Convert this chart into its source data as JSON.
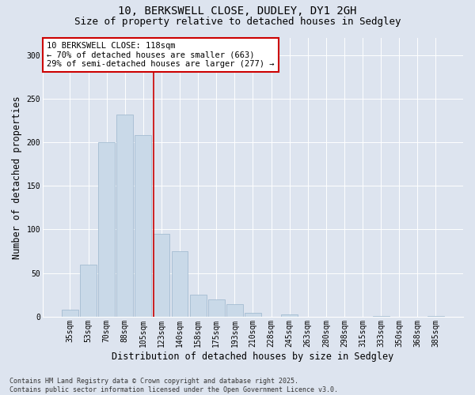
{
  "title1": "10, BERKSWELL CLOSE, DUDLEY, DY1 2GH",
  "title2": "Size of property relative to detached houses in Sedgley",
  "xlabel": "Distribution of detached houses by size in Sedgley",
  "ylabel": "Number of detached properties",
  "bins": [
    "35sqm",
    "53sqm",
    "70sqm",
    "88sqm",
    "105sqm",
    "123sqm",
    "140sqm",
    "158sqm",
    "175sqm",
    "193sqm",
    "210sqm",
    "228sqm",
    "245sqm",
    "263sqm",
    "280sqm",
    "298sqm",
    "315sqm",
    "333sqm",
    "350sqm",
    "368sqm",
    "385sqm"
  ],
  "values": [
    8,
    60,
    200,
    232,
    208,
    95,
    75,
    25,
    20,
    14,
    4,
    0,
    3,
    0,
    0,
    0,
    0,
    1,
    0,
    0,
    1
  ],
  "bar_color": "#c9d9e8",
  "bar_edge_color": "#9ab5cc",
  "vline_color": "#cc0000",
  "vline_x_index": 5,
  "annotation_box_text": "10 BERKSWELL CLOSE: 118sqm\n← 70% of detached houses are smaller (663)\n29% of semi-detached houses are larger (277) →",
  "box_edge_color": "#cc0000",
  "background_color": "#dde4ef",
  "plot_bg_color": "#dde4ef",
  "footer_text": "Contains HM Land Registry data © Crown copyright and database right 2025.\nContains public sector information licensed under the Open Government Licence v3.0.",
  "ylim": [
    0,
    320
  ],
  "yticks": [
    0,
    50,
    100,
    150,
    200,
    250,
    300
  ],
  "title_fontsize": 10,
  "subtitle_fontsize": 9,
  "axis_label_fontsize": 8.5,
  "tick_fontsize": 7,
  "annotation_fontsize": 7.5,
  "footer_fontsize": 6
}
